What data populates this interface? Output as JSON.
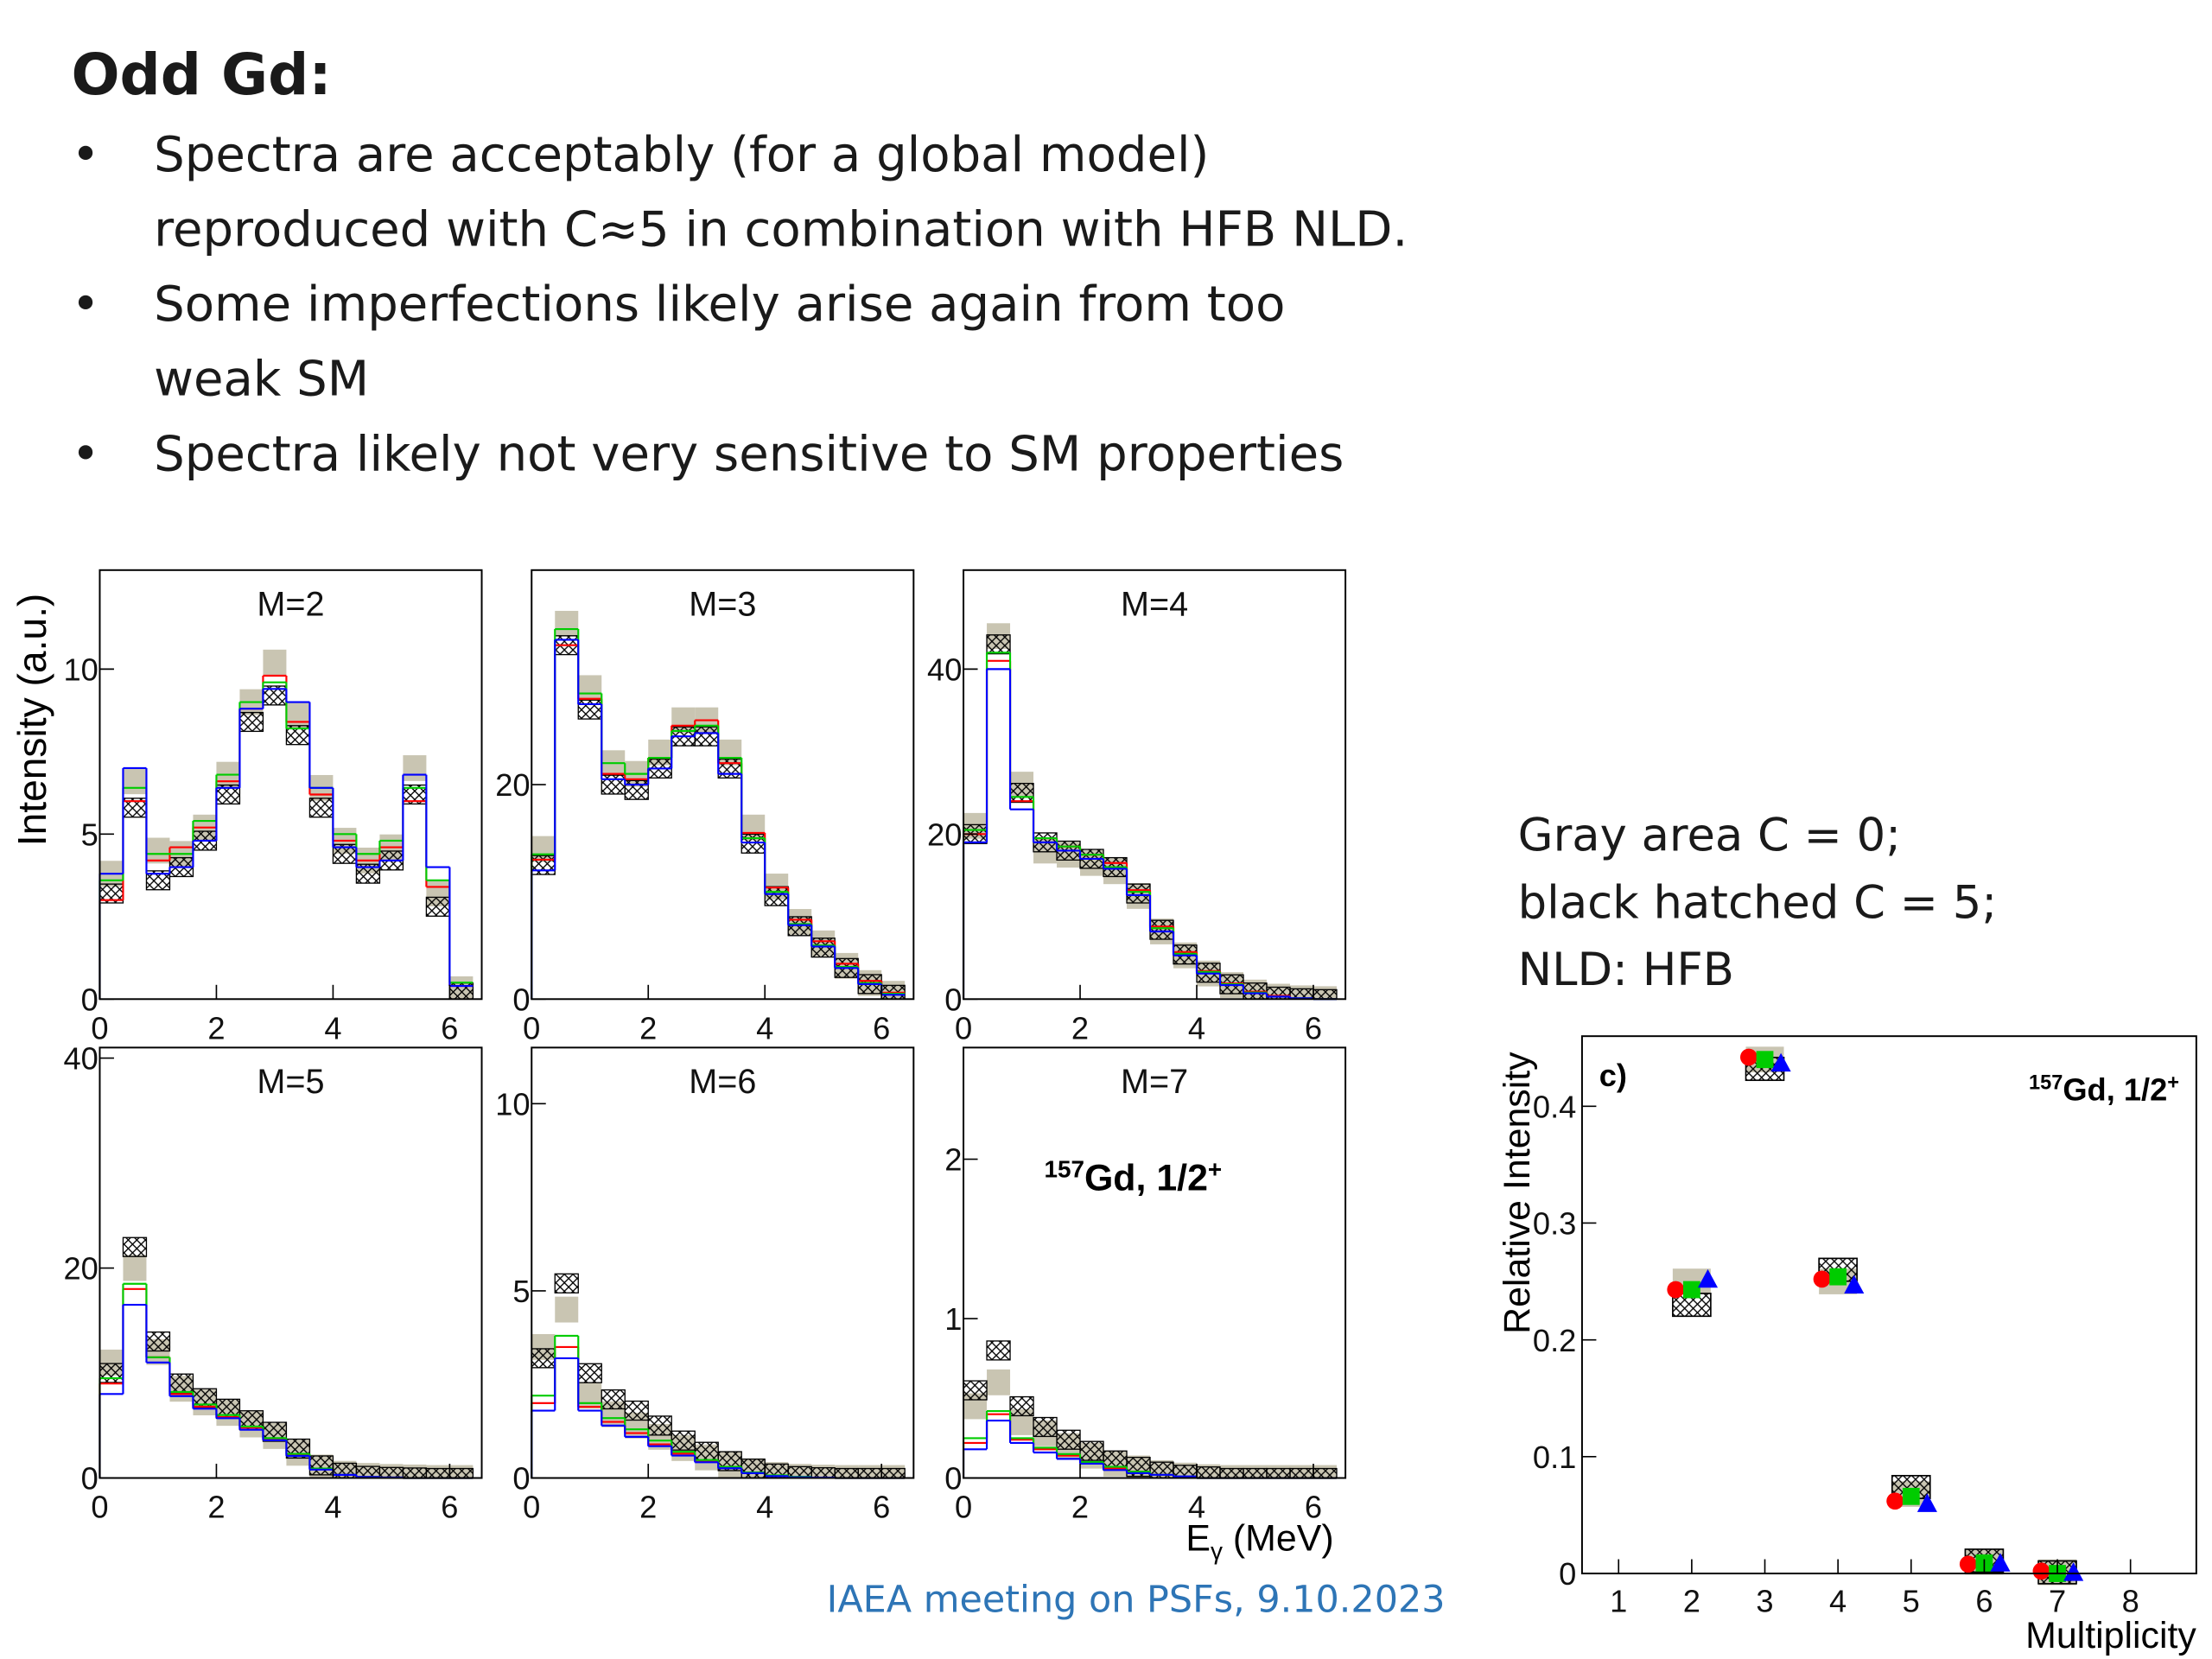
{
  "title": "Odd Gd:",
  "bullets": [
    [
      "Spectra are acceptably (for a global model)",
      "reproduced with C≈5 in combination with HFB NLD."
    ],
    [
      "Some imperfections likely arise again from too",
      "weak SM"
    ],
    [
      "Spectra likely not very sensitive to SM properties"
    ]
  ],
  "bullet_symbol": "•",
  "note": [
    "Gray area C = 0;",
    "black hatched C = 5;",
    "NLD: HFB"
  ],
  "footer": "IAEA meeting on PSFs, 9.10.2023",
  "y_label": "Intensity (a.u.)",
  "x_label": {
    "symbol": "E",
    "subscript": "γ",
    "unit": " (MeV)"
  },
  "chart_data": [
    {
      "type": "histogram",
      "title": "M=2",
      "bins": [
        0,
        0.4,
        0.8,
        1.2,
        1.6,
        2.0,
        2.4,
        2.8,
        3.2,
        3.6,
        4.0,
        4.4,
        4.8,
        5.2,
        5.6,
        6.0,
        6.4
      ],
      "xlim": [
        0,
        6.55
      ],
      "xticks": [
        0,
        2,
        4,
        6
      ],
      "ylim": [
        0,
        13
      ],
      "yticks": [
        0,
        5,
        10
      ],
      "series": [
        {
          "style": "band",
          "color": "#c9c5b2",
          "values": [
            3.8,
            6.6,
            4.5,
            4.4,
            5.2,
            6.8,
            9.0,
            10.2,
            8.6,
            6.4,
            4.8,
            4.2,
            4.6,
            7.0,
            3.2,
            0.3
          ]
        },
        {
          "style": "hatch",
          "color": "#000000",
          "values": [
            3.2,
            5.8,
            3.6,
            4.0,
            4.8,
            6.2,
            8.4,
            9.2,
            8.0,
            5.8,
            4.4,
            3.8,
            4.2,
            6.2,
            2.8,
            0.2
          ]
        },
        {
          "style": "line",
          "color": "#ff0000",
          "values": [
            3.0,
            6.0,
            4.2,
            4.6,
            5.2,
            6.6,
            8.8,
            9.8,
            8.4,
            6.2,
            4.8,
            4.2,
            4.6,
            6.0,
            3.4,
            0.4
          ]
        },
        {
          "style": "line",
          "color": "#00cc00",
          "values": [
            3.6,
            6.4,
            4.4,
            4.4,
            5.4,
            6.8,
            9.0,
            9.6,
            8.2,
            6.4,
            5.0,
            4.4,
            4.8,
            6.4,
            3.6,
            0.5
          ]
        },
        {
          "style": "line",
          "color": "#0000ff",
          "values": [
            3.8,
            7.0,
            3.8,
            4.0,
            4.8,
            6.4,
            8.8,
            9.4,
            9.0,
            6.4,
            4.6,
            4.0,
            4.2,
            6.8,
            4.0,
            0.4
          ]
        }
      ]
    },
    {
      "type": "histogram",
      "title": "M=3",
      "bins": [
        0,
        0.4,
        0.8,
        1.2,
        1.6,
        2.0,
        2.4,
        2.8,
        3.2,
        3.6,
        4.0,
        4.4,
        4.8,
        5.2,
        5.6,
        6.0,
        6.4
      ],
      "xlim": [
        0,
        6.55
      ],
      "xticks": [
        0,
        2,
        4,
        6
      ],
      "ylim": [
        0,
        40
      ],
      "yticks": [
        0,
        20
      ],
      "series": [
        {
          "style": "band",
          "color": "#c9c5b2",
          "values": [
            14,
            35,
            29,
            22,
            21,
            23,
            26,
            26,
            23,
            16,
            10.5,
            7.2,
            5.2,
            3.1,
            1.5,
            0.5
          ]
        },
        {
          "style": "hatch",
          "color": "#000000",
          "values": [
            12.5,
            33,
            27,
            20,
            19.5,
            21.5,
            24.5,
            24.5,
            21.5,
            14.5,
            9.6,
            6.8,
            4.8,
            2.9,
            1.4,
            0.4
          ]
        },
        {
          "style": "line",
          "color": "#ff0000",
          "values": [
            13,
            33,
            28,
            21,
            20.5,
            22.5,
            25.5,
            26,
            22,
            15.5,
            10.4,
            7.4,
            5.4,
            3.3,
            1.7,
            0.6
          ]
        },
        {
          "style": "line",
          "color": "#00cc00",
          "values": [
            13.5,
            34.5,
            28.5,
            22,
            21,
            22.5,
            25,
            25.5,
            22.5,
            15,
            10,
            7,
            5,
            3,
            1.5,
            0.5
          ]
        },
        {
          "style": "line",
          "color": "#0000ff",
          "values": [
            12,
            33.5,
            27.5,
            20.5,
            20,
            21.5,
            24.5,
            24.8,
            21,
            14.6,
            9.8,
            6.9,
            4.9,
            2.9,
            1.4,
            0.4
          ]
        }
      ]
    },
    {
      "type": "histogram",
      "title": "M=4",
      "bins": [
        0,
        0.4,
        0.8,
        1.2,
        1.6,
        2.0,
        2.4,
        2.8,
        3.2,
        3.6,
        4.0,
        4.4,
        4.8,
        5.2,
        5.6,
        6.0,
        6.4
      ],
      "xlim": [
        0,
        6.55
      ],
      "xticks": [
        0,
        2,
        4,
        6
      ],
      "ylim": [
        0,
        52
      ],
      "yticks": [
        0,
        20,
        40
      ],
      "series": [
        {
          "style": "band",
          "color": "#c9c5b2",
          "values": [
            21,
            44,
            26,
            18,
            17.5,
            16.5,
            15.5,
            12.5,
            8.2,
            5.3,
            3.1,
            1.7,
            0.8,
            0.3,
            0.1,
            0
          ]
        },
        {
          "style": "hatch",
          "color": "#000000",
          "values": [
            20,
            43,
            25,
            19,
            18,
            17,
            16,
            12.8,
            8.4,
            5.4,
            3.2,
            1.8,
            0.8,
            0.3,
            0.1,
            0
          ]
        },
        {
          "style": "line",
          "color": "#ff0000",
          "values": [
            20,
            41,
            24,
            19.5,
            18.5,
            17.5,
            16.5,
            13.2,
            8.8,
            5.7,
            3.4,
            1.9,
            0.9,
            0.4,
            0.1,
            0
          ]
        },
        {
          "style": "line",
          "color": "#00cc00",
          "values": [
            20.5,
            42,
            24.5,
            19.5,
            18.5,
            17.5,
            16,
            13,
            8.6,
            5.5,
            3.3,
            1.8,
            0.8,
            0.3,
            0.1,
            0
          ]
        },
        {
          "style": "line",
          "color": "#0000ff",
          "values": [
            19,
            40,
            23,
            19,
            18,
            17,
            15.8,
            12.6,
            8.2,
            5.3,
            3.1,
            1.7,
            0.7,
            0.3,
            0.1,
            0
          ]
        }
      ]
    },
    {
      "type": "histogram",
      "title": "M=5",
      "bins": [
        0,
        0.4,
        0.8,
        1.2,
        1.6,
        2.0,
        2.4,
        2.8,
        3.2,
        3.6,
        4.0,
        4.4,
        4.8,
        5.2,
        5.6,
        6.0,
        6.4
      ],
      "xlim": [
        0,
        6.55
      ],
      "xticks": [
        0,
        2,
        4,
        6
      ],
      "ylim": [
        0,
        41
      ],
      "yticks": [
        0,
        20,
        40
      ],
      "series": [
        {
          "style": "band",
          "color": "#c9c5b2",
          "values": [
            11,
            20,
            12,
            8.5,
            7.2,
            6.2,
            5.1,
            4.0,
            2.4,
            1.0,
            0.4,
            0.2,
            0.1,
            0.05,
            0,
            0
          ]
        },
        {
          "style": "hatch",
          "color": "#000000",
          "values": [
            10,
            22,
            13,
            9,
            7.6,
            6.6,
            5.5,
            4.4,
            2.8,
            1.2,
            0.5,
            0.2,
            0.1,
            0.05,
            0,
            0
          ]
        },
        {
          "style": "line",
          "color": "#ff0000",
          "values": [
            9,
            18,
            11.5,
            8,
            6.8,
            5.8,
            4.8,
            3.7,
            2.2,
            0.9,
            0.3,
            0.1,
            0.05,
            0,
            0,
            0
          ]
        },
        {
          "style": "line",
          "color": "#00cc00",
          "values": [
            9.5,
            18.5,
            11.5,
            8.2,
            7,
            6,
            4.9,
            3.8,
            2.3,
            0.9,
            0.3,
            0.1,
            0.05,
            0,
            0,
            0
          ]
        },
        {
          "style": "line",
          "color": "#0000ff",
          "values": [
            8,
            16.5,
            11,
            7.8,
            6.6,
            5.7,
            4.6,
            3.6,
            2.1,
            0.8,
            0.3,
            0.1,
            0.05,
            0,
            0,
            0
          ]
        }
      ]
    },
    {
      "type": "histogram",
      "title": "M=6",
      "bins": [
        0,
        0.4,
        0.8,
        1.2,
        1.6,
        2.0,
        2.4,
        2.8,
        3.2,
        3.6,
        4.0,
        4.4,
        4.8,
        5.2,
        5.6,
        6.0,
        6.4
      ],
      "xlim": [
        0,
        6.55
      ],
      "xticks": [
        0,
        2,
        4,
        6
      ],
      "ylim": [
        0,
        11.5
      ],
      "yticks": [
        0,
        5,
        10
      ],
      "series": [
        {
          "style": "band",
          "color": "#c9c5b2",
          "values": [
            3.5,
            4.5,
            2.2,
            1.7,
            1.4,
            1.1,
            0.8,
            0.55,
            0.35,
            0.18,
            0.08,
            0.03,
            0.01,
            0,
            0,
            0
          ]
        },
        {
          "style": "hatch",
          "color": "#000000",
          "values": [
            3.2,
            5.2,
            2.8,
            2.1,
            1.8,
            1.4,
            1.0,
            0.7,
            0.45,
            0.25,
            0.12,
            0.05,
            0.02,
            0,
            0,
            0
          ]
        },
        {
          "style": "line",
          "color": "#ff0000",
          "values": [
            2.0,
            3.5,
            1.9,
            1.5,
            1.2,
            0.9,
            0.65,
            0.45,
            0.28,
            0.14,
            0.06,
            0.02,
            0.01,
            0,
            0,
            0
          ]
        },
        {
          "style": "line",
          "color": "#00cc00",
          "values": [
            2.2,
            3.8,
            2.0,
            1.6,
            1.3,
            1.0,
            0.7,
            0.48,
            0.3,
            0.15,
            0.07,
            0.03,
            0.01,
            0,
            0,
            0
          ]
        },
        {
          "style": "line",
          "color": "#0000ff",
          "values": [
            1.8,
            3.2,
            1.8,
            1.4,
            1.1,
            0.85,
            0.6,
            0.42,
            0.26,
            0.13,
            0.05,
            0.02,
            0.01,
            0,
            0,
            0
          ]
        }
      ]
    },
    {
      "type": "histogram",
      "title": "M=7",
      "bins": [
        0,
        0.4,
        0.8,
        1.2,
        1.6,
        2.0,
        2.4,
        2.8,
        3.2,
        3.6,
        4.0,
        4.4,
        4.8,
        5.2,
        5.6,
        6.0,
        6.4
      ],
      "xlim": [
        0,
        6.55
      ],
      "xticks": [
        0,
        2,
        4,
        6
      ],
      "ylim": [
        0,
        2.7
      ],
      "yticks": [
        0,
        1,
        2
      ],
      "annotation": {
        "mass": "157",
        "text": "Gd, 1/2",
        "parity": "+"
      },
      "series": [
        {
          "style": "band",
          "color": "#c9c5b2",
          "values": [
            0.45,
            0.6,
            0.35,
            0.28,
            0.2,
            0.14,
            0.09,
            0.06,
            0.03,
            0.015,
            0.005,
            0,
            0,
            0,
            0,
            0
          ]
        },
        {
          "style": "hatch",
          "color": "#000000",
          "values": [
            0.55,
            0.8,
            0.45,
            0.32,
            0.24,
            0.17,
            0.11,
            0.07,
            0.04,
            0.02,
            0.01,
            0,
            0,
            0,
            0,
            0
          ]
        },
        {
          "style": "line",
          "color": "#ff0000",
          "values": [
            0.22,
            0.4,
            0.24,
            0.18,
            0.14,
            0.1,
            0.06,
            0.04,
            0.02,
            0.01,
            0,
            0,
            0,
            0,
            0,
            0
          ]
        },
        {
          "style": "line",
          "color": "#00cc00",
          "values": [
            0.25,
            0.42,
            0.25,
            0.19,
            0.15,
            0.1,
            0.07,
            0.04,
            0.02,
            0.01,
            0,
            0,
            0,
            0,
            0,
            0
          ]
        },
        {
          "style": "line",
          "color": "#0000ff",
          "values": [
            0.18,
            0.36,
            0.22,
            0.16,
            0.12,
            0.09,
            0.05,
            0.03,
            0.02,
            0.01,
            0,
            0,
            0,
            0,
            0,
            0
          ]
        }
      ]
    },
    {
      "type": "scatter",
      "label": "c)",
      "x_label": "Multiplicity",
      "y_label": "Relative Intensity",
      "annotation": {
        "mass": "157",
        "text": "Gd, 1/2",
        "parity": "+"
      },
      "x": [
        2,
        3,
        4,
        5,
        6,
        7
      ],
      "xlim": [
        0.5,
        8.9
      ],
      "xticks": [
        1,
        2,
        3,
        4,
        5,
        6,
        7,
        8
      ],
      "ylim": [
        0,
        0.46
      ],
      "yticks": [
        0,
        0.1,
        0.2,
        0.3,
        0.4
      ],
      "series": [
        {
          "style": "band",
          "color": "#c9c5b2",
          "values": [
            0.25,
            0.44,
            0.25,
            0.068,
            0.01,
            0.001
          ]
        },
        {
          "style": "hatch",
          "color": "#000000",
          "values": [
            0.23,
            0.432,
            0.26,
            0.074,
            0.011,
            0.001
          ]
        },
        {
          "style": "circle",
          "color": "#ff0000",
          "values": [
            0.243,
            0.442,
            0.252,
            0.062,
            0.008,
            0.002
          ]
        },
        {
          "style": "square",
          "color": "#00cc00",
          "values": [
            0.243,
            0.44,
            0.254,
            0.066,
            0.009,
            0.0
          ]
        },
        {
          "style": "triangle",
          "color": "#0000ff",
          "values": [
            0.252,
            0.437,
            0.247,
            0.06,
            0.009,
            0.001
          ]
        }
      ]
    }
  ]
}
